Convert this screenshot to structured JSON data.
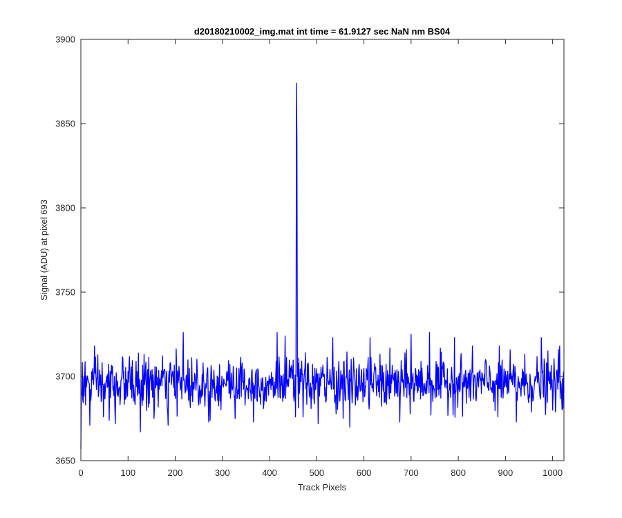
{
  "chart_data": {
    "type": "line",
    "title": "d20180210002_img.mat int time = 61.9127 sec  NaN nm BS04",
    "xlabel": "Track Pixels",
    "ylabel": "Signal (ADU) at pixel 693",
    "xlim": [
      0,
      1024
    ],
    "ylim": [
      3650,
      3900
    ],
    "xticks": [
      0,
      100,
      200,
      300,
      400,
      500,
      600,
      700,
      800,
      900,
      1000
    ],
    "yticks": [
      3650,
      3700,
      3750,
      3800,
      3850,
      3900
    ],
    "grid": false,
    "line_color": "#0000ff",
    "series": [
      {
        "baseline": 3696,
        "noise_amplitude": 9,
        "key_points": [
          {
            "x": 0,
            "y": 3657
          },
          {
            "x": 1,
            "y": 3688
          },
          {
            "x": 10,
            "y": 3683
          },
          {
            "x": 19,
            "y": 3671
          },
          {
            "x": 48,
            "y": 3676
          },
          {
            "x": 60,
            "y": 3674
          },
          {
            "x": 73,
            "y": 3672
          },
          {
            "x": 126,
            "y": 3667
          },
          {
            "x": 155,
            "y": 3675
          },
          {
            "x": 185,
            "y": 3671
          },
          {
            "x": 217,
            "y": 3726
          },
          {
            "x": 271,
            "y": 3673
          },
          {
            "x": 327,
            "y": 3675
          },
          {
            "x": 366,
            "y": 3673
          },
          {
            "x": 416,
            "y": 3726
          },
          {
            "x": 433,
            "y": 3724
          },
          {
            "x": 455,
            "y": 3676
          },
          {
            "x": 457,
            "y": 3874
          },
          {
            "x": 458,
            "y": 3840
          },
          {
            "x": 459,
            "y": 3700
          },
          {
            "x": 471,
            "y": 3676
          },
          {
            "x": 503,
            "y": 3672
          },
          {
            "x": 534,
            "y": 3723
          },
          {
            "x": 570,
            "y": 3670
          },
          {
            "x": 613,
            "y": 3723
          },
          {
            "x": 676,
            "y": 3673
          },
          {
            "x": 700,
            "y": 3725
          },
          {
            "x": 739,
            "y": 3726
          },
          {
            "x": 792,
            "y": 3723
          },
          {
            "x": 884,
            "y": 3676
          },
          {
            "x": 923,
            "y": 3673
          },
          {
            "x": 976,
            "y": 3723
          },
          {
            "x": 1000,
            "y": 3680
          },
          {
            "x": 1015,
            "y": 3718
          },
          {
            "x": 1024,
            "y": 3692
          }
        ]
      }
    ]
  }
}
